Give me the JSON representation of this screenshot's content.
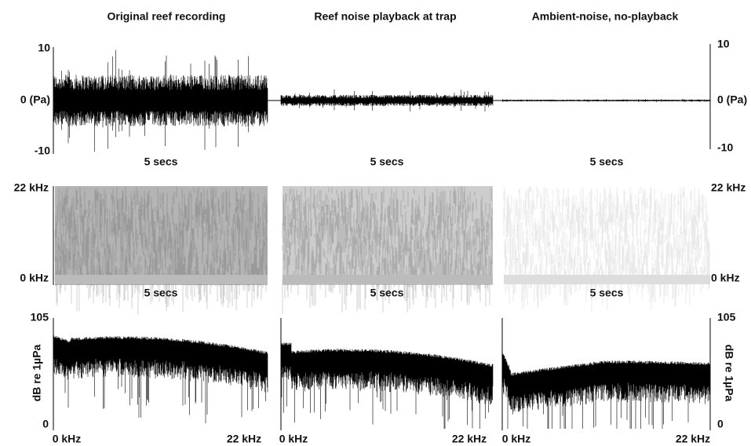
{
  "columns": [
    {
      "title": "Original reef recording"
    },
    {
      "title": "Reef noise playback at trap"
    },
    {
      "title": "Ambient-noise, no-playback"
    }
  ],
  "waveform": {
    "x_label": "5 secs",
    "left_ticks": [
      "10",
      "0 (Pa)",
      "-10"
    ],
    "right_ticks": [
      "10",
      "0 (Pa)",
      "-10"
    ]
  },
  "spectrogram": {
    "x_label": "5 secs",
    "left_ticks": [
      "22 kHz",
      "0 kHz"
    ],
    "right_ticks": [
      "22 kHz",
      "0 kHz"
    ]
  },
  "spectrum": {
    "y_label": "dB re 1µPa",
    "left_ticks": [
      "105",
      "0"
    ],
    "right_ticks": [
      "105",
      "0"
    ],
    "x_ticks": [
      "0 kHz",
      "22 kHz"
    ]
  }
}
